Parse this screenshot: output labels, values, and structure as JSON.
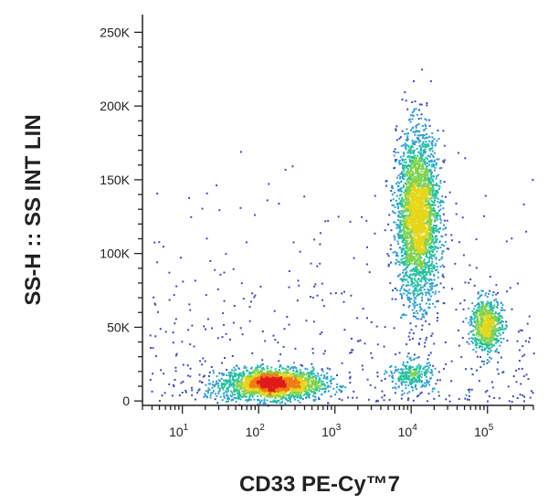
{
  "chart_data": {
    "type": "scatter",
    "subtype": "flow-cytometry density dot plot",
    "title": "",
    "xlabel": "CD33 PE-Cy™7",
    "ylabel": "SS-H :: SS INT LIN",
    "x_scale": "log",
    "y_scale": "linear",
    "xlim": [
      3,
      400000
    ],
    "ylim": [
      -3000,
      262000
    ],
    "x_ticks": [
      {
        "base": "10",
        "exp": "1",
        "value": 10
      },
      {
        "base": "10",
        "exp": "2",
        "value": 100
      },
      {
        "base": "10",
        "exp": "3",
        "value": 1000
      },
      {
        "base": "10",
        "exp": "4",
        "value": 10000
      },
      {
        "base": "10",
        "exp": "5",
        "value": 100000
      }
    ],
    "y_ticks": [
      {
        "label": "0",
        "value": 0
      },
      {
        "label": "50K",
        "value": 50000
      },
      {
        "label": "100K",
        "value": 100000
      },
      {
        "label": "150K",
        "value": 150000
      },
      {
        "label": "200K",
        "value": 200000
      },
      {
        "label": "250K",
        "value": 250000
      }
    ],
    "grid": false,
    "color_scale": [
      "#3b4cc0",
      "#2a9fd6",
      "#20c0a0",
      "#7fd34e",
      "#e6d619",
      "#f07d14",
      "#e01a1a"
    ],
    "populations": [
      {
        "x_center": 150,
        "x_log_sd": 0.32,
        "y_center": 12000,
        "y_sd": 5000,
        "count": 2200
      },
      {
        "x_center": 12000,
        "x_log_sd": 0.14,
        "y_center": 125000,
        "y_sd": 28000,
        "count": 2800
      },
      {
        "x_center": 95000,
        "x_log_sd": 0.1,
        "y_center": 52000,
        "y_sd": 9000,
        "count": 700
      },
      {
        "x_center": 10000,
        "x_log_sd": 0.15,
        "y_center": 18000,
        "y_sd": 5000,
        "count": 250
      }
    ]
  }
}
